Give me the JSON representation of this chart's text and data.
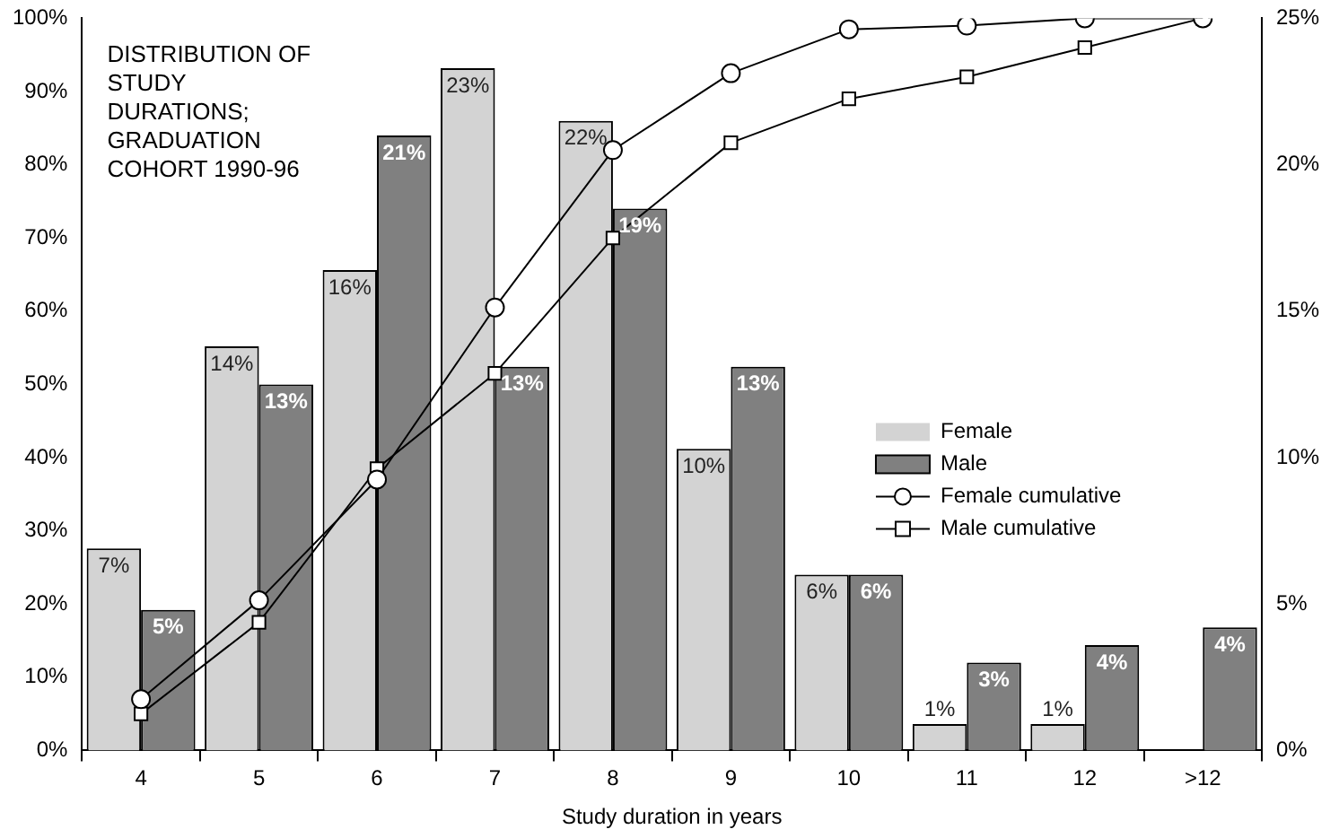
{
  "chart_data": {
    "type": "bar",
    "title": "DISTRIBUTION OF STUDY DURATIONS; GRADUATION COHORT 1990-96",
    "xlabel": "Study duration in years",
    "categories": [
      "4",
      "5",
      "6",
      "7",
      "8",
      "9",
      "10",
      "11",
      "12",
      ">12"
    ],
    "series": [
      {
        "name": "Female",
        "axis": "y2",
        "color": "#d3d3d3",
        "values": [
          6.9,
          13.8,
          16.4,
          23.3,
          21.5,
          10.3,
          6.0,
          0.9,
          0.9,
          null
        ],
        "value_labels": [
          "7%",
          "14%",
          "16%",
          "23%",
          "22%",
          "10%",
          "6%",
          "1%",
          "1%",
          null
        ]
      },
      {
        "name": "Male",
        "axis": "y2",
        "color": "#808080",
        "values": [
          4.8,
          12.5,
          21.0,
          13.1,
          18.5,
          13.1,
          6.0,
          3.0,
          3.6,
          4.2
        ],
        "value_labels": [
          "5%",
          "13%",
          "21%",
          "13%",
          "19%",
          "13%",
          "6%",
          "3%",
          "4%",
          "4%"
        ]
      },
      {
        "name": "Female cumulative",
        "type": "line",
        "marker": "circle",
        "color": "#000000",
        "values": [
          7,
          20.5,
          37,
          60.5,
          82,
          92.5,
          98.5,
          99,
          100,
          100
        ]
      },
      {
        "name": "Male cumulative",
        "type": "line",
        "marker": "square",
        "color": "#000000",
        "values": [
          5,
          17.5,
          38.5,
          51.5,
          70,
          83,
          89,
          92,
          96,
          100
        ]
      }
    ],
    "ylim": [
      0,
      100
    ],
    "yticks": [
      {
        "value": 0,
        "label": "0%"
      },
      {
        "value": 10,
        "label": "10%"
      },
      {
        "value": 20,
        "label": "20%"
      },
      {
        "value": 30,
        "label": "30%"
      },
      {
        "value": 40,
        "label": "40%"
      },
      {
        "value": 50,
        "label": "50%"
      },
      {
        "value": 60,
        "label": "60%"
      },
      {
        "value": 70,
        "label": "70%"
      },
      {
        "value": 80,
        "label": "80%"
      },
      {
        "value": 90,
        "label": "90%"
      },
      {
        "value": 100,
        "label": "100%"
      }
    ],
    "y2lim": [
      0,
      25
    ],
    "y2ticks": [
      {
        "value": 0,
        "label": "0%"
      },
      {
        "value": 5,
        "label": "5%"
      },
      {
        "value": 10,
        "label": "10%"
      },
      {
        "value": 15,
        "label": "15%"
      },
      {
        "value": 20,
        "label": "20%"
      },
      {
        "value": 25,
        "label": "25%"
      }
    ],
    "grid": false,
    "legend": "right"
  }
}
